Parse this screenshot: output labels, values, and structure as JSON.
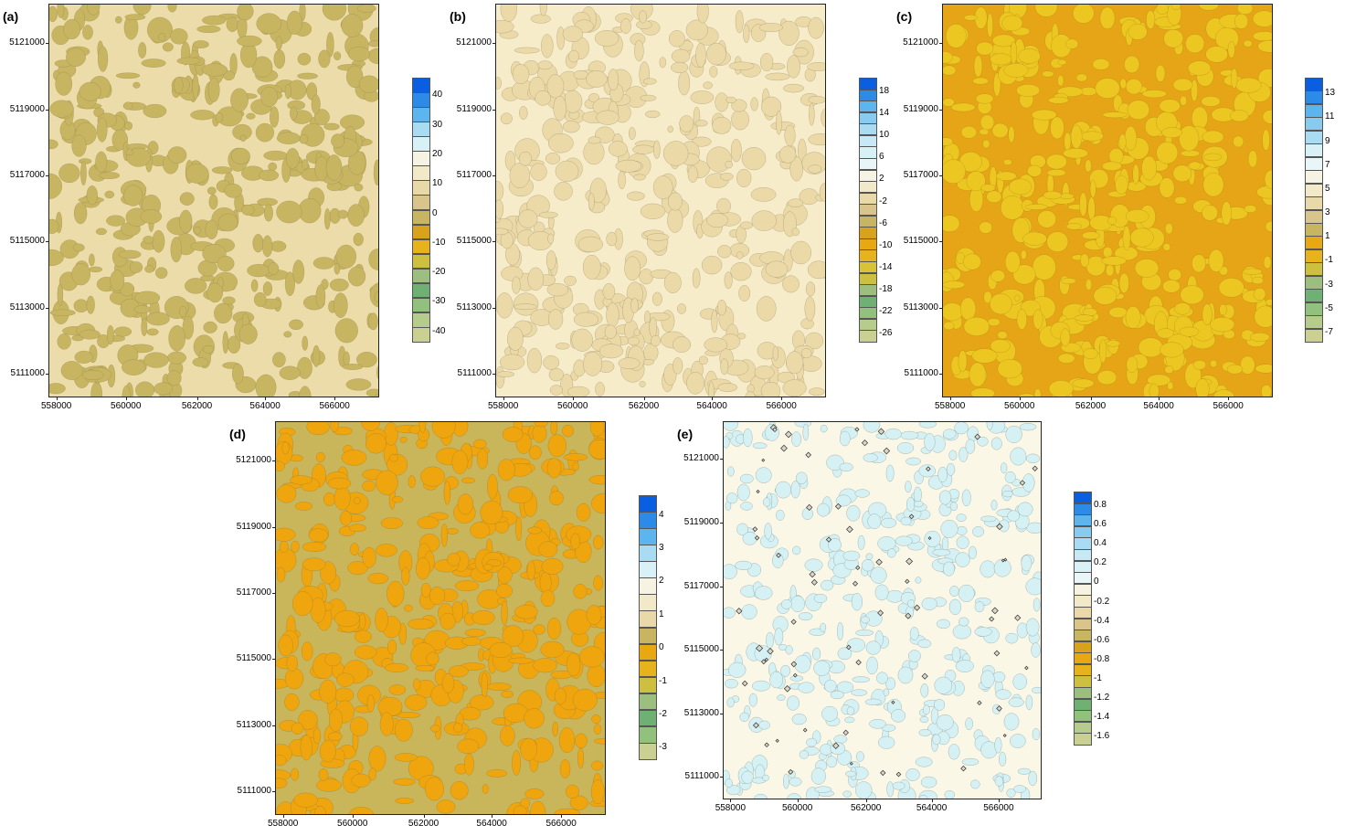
{
  "axes": {
    "x_ticks": [
      "558000",
      "560000",
      "562000",
      "564000",
      "566000"
    ],
    "y_ticks": [
      "5121000",
      "5119000",
      "5117000",
      "5115000",
      "5113000",
      "5111000"
    ]
  },
  "panels": [
    {
      "label": "(a)",
      "colors": {
        "base": "#ecdcaa",
        "patch": "#c8b561",
        "line": "#8a7d45"
      },
      "legend": {
        "labels": [
          "40",
          "30",
          "20",
          "10",
          "0",
          "-10",
          "-20",
          "-30",
          "-40"
        ],
        "colors": [
          "#0a5fe0",
          "#2b8be6",
          "#5cb5ec",
          "#a9dcf2",
          "#d8f1f7",
          "#f7f3e2",
          "#f2e9c8",
          "#ead9a8",
          "#d9c48b",
          "#c8b561",
          "#d9a21d",
          "#e6b31c",
          "#cdbf3f",
          "#9cbf7f",
          "#6fb073",
          "#92c07d",
          "#b6cc8c",
          "#c9d092"
        ]
      }
    },
    {
      "label": "(b)",
      "colors": {
        "base": "#f6ecca",
        "patch": "#ebd9a8",
        "line": "#8a7d55"
      },
      "legend": {
        "labels": [
          "18",
          "14",
          "10",
          "6",
          "2",
          "-2",
          "-6",
          "-10",
          "-14",
          "-18",
          "-22",
          "-26"
        ],
        "colors": [
          "#0a5fe0",
          "#2b8be6",
          "#5cb5ec",
          "#88cbef",
          "#a9dcf2",
          "#c6e9f5",
          "#d8f1f7",
          "#e9f6f7",
          "#f7f3e2",
          "#f2e9c8",
          "#ead9a8",
          "#d9c48b",
          "#c8b561",
          "#d9a21d",
          "#e8a812",
          "#e6b31c",
          "#d8c236",
          "#cdbf3f",
          "#9cbf7f",
          "#6fb073",
          "#92c07d",
          "#b6cc8c",
          "#c9d092"
        ]
      }
    },
    {
      "label": "(c)",
      "colors": {
        "base": "#e6a516",
        "patch": "#ecc722",
        "line": "#a07a10"
      },
      "legend": {
        "labels": [
          "13",
          "11",
          "9",
          "7",
          "5",
          "3",
          "1",
          "-1",
          "-3",
          "-5",
          "-7"
        ],
        "colors": [
          "#0a5fe0",
          "#2b8be6",
          "#5cb5ec",
          "#88cbef",
          "#a9dcf2",
          "#d8f1f7",
          "#e9f6f7",
          "#f7f3e2",
          "#f2e9c8",
          "#ead9a8",
          "#d9c48b",
          "#c8b561",
          "#e8a812",
          "#e6b31c",
          "#cdbf3f",
          "#9cbf7f",
          "#6fb073",
          "#92c07d",
          "#b6cc8c",
          "#c9d092"
        ]
      }
    },
    {
      "label": "(d)",
      "colors": {
        "base": "#c9b55a",
        "patch": "#efa50e",
        "line": "#8a7030"
      },
      "legend": {
        "labels": [
          "4",
          "3",
          "2",
          "1",
          "0",
          "-1",
          "-2",
          "-3"
        ],
        "colors": [
          "#0a5fe0",
          "#2b8be6",
          "#5cb5ec",
          "#a9dcf2",
          "#d8f1f7",
          "#f7f3e2",
          "#f2e9c8",
          "#ead9a8",
          "#c8b561",
          "#e8a812",
          "#e6b31c",
          "#cdbf3f",
          "#9cbf7f",
          "#6fb073",
          "#92c07d",
          "#c9d092"
        ]
      }
    },
    {
      "label": "(e)",
      "colors": {
        "base": "#fbf7e6",
        "patch": "#d5f1f4",
        "line": "#667a7a"
      },
      "legend": {
        "labels": [
          "0.8",
          "0.6",
          "0.4",
          "0.2",
          "0",
          "-0.2",
          "-0.4",
          "-0.6",
          "-0.8",
          "-1",
          "-1.2",
          "-1.4",
          "-1.6"
        ],
        "colors": [
          "#0a5fe0",
          "#2b8be6",
          "#5cb5ec",
          "#88cbef",
          "#a9dcf2",
          "#c6e9f5",
          "#d8f1f7",
          "#e9f6f7",
          "#f7f3e2",
          "#f2e9c8",
          "#ead9a8",
          "#d9c48b",
          "#c8b561",
          "#d9a21d",
          "#e8a812",
          "#e6b31c",
          "#cdbf3f",
          "#9cbf7f",
          "#6fb073",
          "#92c07d",
          "#b6cc8c",
          "#c9d092"
        ]
      }
    }
  ]
}
